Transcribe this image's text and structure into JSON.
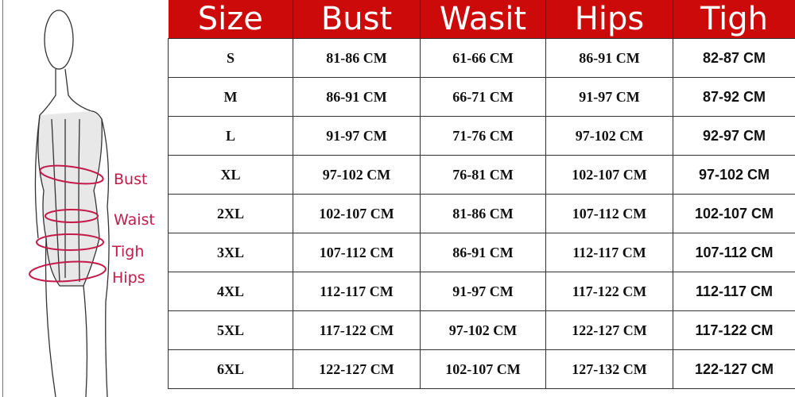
{
  "measure_labels": {
    "bust": "Bust",
    "waist": "Waist",
    "tigh": "Tigh",
    "hips": "Hips"
  },
  "colors": {
    "header_bg": "#cc0a0a",
    "label": "#c41a4a"
  },
  "table": {
    "headers": [
      "Size",
      "Bust",
      "Wasit",
      "Hips",
      "Tigh"
    ],
    "rows": [
      [
        "S",
        "81-86 CM",
        "61-66 CM",
        "86-91 CM",
        "82-87 CM"
      ],
      [
        "M",
        "86-91 CM",
        "66-71 CM",
        "91-97 CM",
        "87-92 CM"
      ],
      [
        "L",
        "91-97 CM",
        "71-76 CM",
        "97-102 CM",
        "92-97 CM"
      ],
      [
        "XL",
        "97-102 CM",
        "76-81 CM",
        "102-107 CM",
        "97-102 CM"
      ],
      [
        "2XL",
        "102-107 CM",
        "81-86 CM",
        "107-112 CM",
        "102-107 CM"
      ],
      [
        "3XL",
        "107-112 CM",
        "86-91 CM",
        "112-117 CM",
        "107-112 CM"
      ],
      [
        "4XL",
        "112-117 CM",
        "91-97 CM",
        "117-122 CM",
        "112-117 CM"
      ],
      [
        "5XL",
        "117-122 CM",
        "97-102 CM",
        "122-127 CM",
        "117-122 CM"
      ],
      [
        "6XL",
        "122-127 CM",
        "102-107 CM",
        "127-132 CM",
        "122-127 CM"
      ]
    ]
  }
}
